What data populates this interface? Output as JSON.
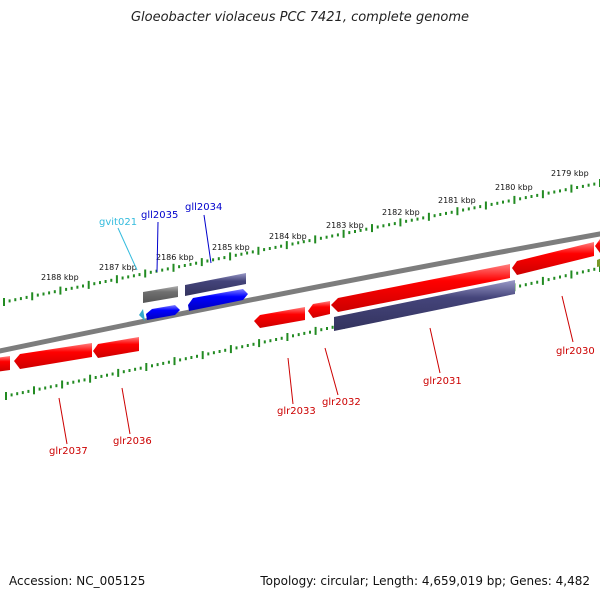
{
  "title": "Gloeobacter violaceus PCC 7421, complete genome",
  "footer": {
    "accession": "Accession: NC_005125",
    "summary": "Topology: circular; Length: 4,659,019 bp; Genes: 4,482"
  },
  "colors": {
    "forward_gene": "#ff0000",
    "reverse_gene": "#0000ff",
    "reverse_gene_dark": "#44447a",
    "pseudo_gene": "#6f6f6f",
    "rna_gene": "#33aacc",
    "ticks": "#228b22",
    "backbone": "#808080"
  },
  "kbp_labels": [
    "2188 kbp",
    "2187 kbp",
    "2186 kbp",
    "2185 kbp",
    "2184 kbp",
    "2183 kbp",
    "2182 kbp",
    "2181 kbp",
    "2180 kbp",
    "2179 kbp"
  ],
  "genes_top": [
    {
      "label": "gvit021",
      "color": "#33bbdd"
    },
    {
      "label": "gll2035",
      "color": "#0000cc"
    },
    {
      "label": "gll2034",
      "color": "#0000cc"
    }
  ],
  "genes_bottom": [
    {
      "label": "glr2037",
      "color": "#cc0000"
    },
    {
      "label": "glr2036",
      "color": "#cc0000"
    },
    {
      "label": "glr2033",
      "color": "#cc0000"
    },
    {
      "label": "glr2032",
      "color": "#cc0000"
    },
    {
      "label": "glr2031",
      "color": "#cc0000"
    },
    {
      "label": "glr2030",
      "color": "#cc0000"
    }
  ]
}
